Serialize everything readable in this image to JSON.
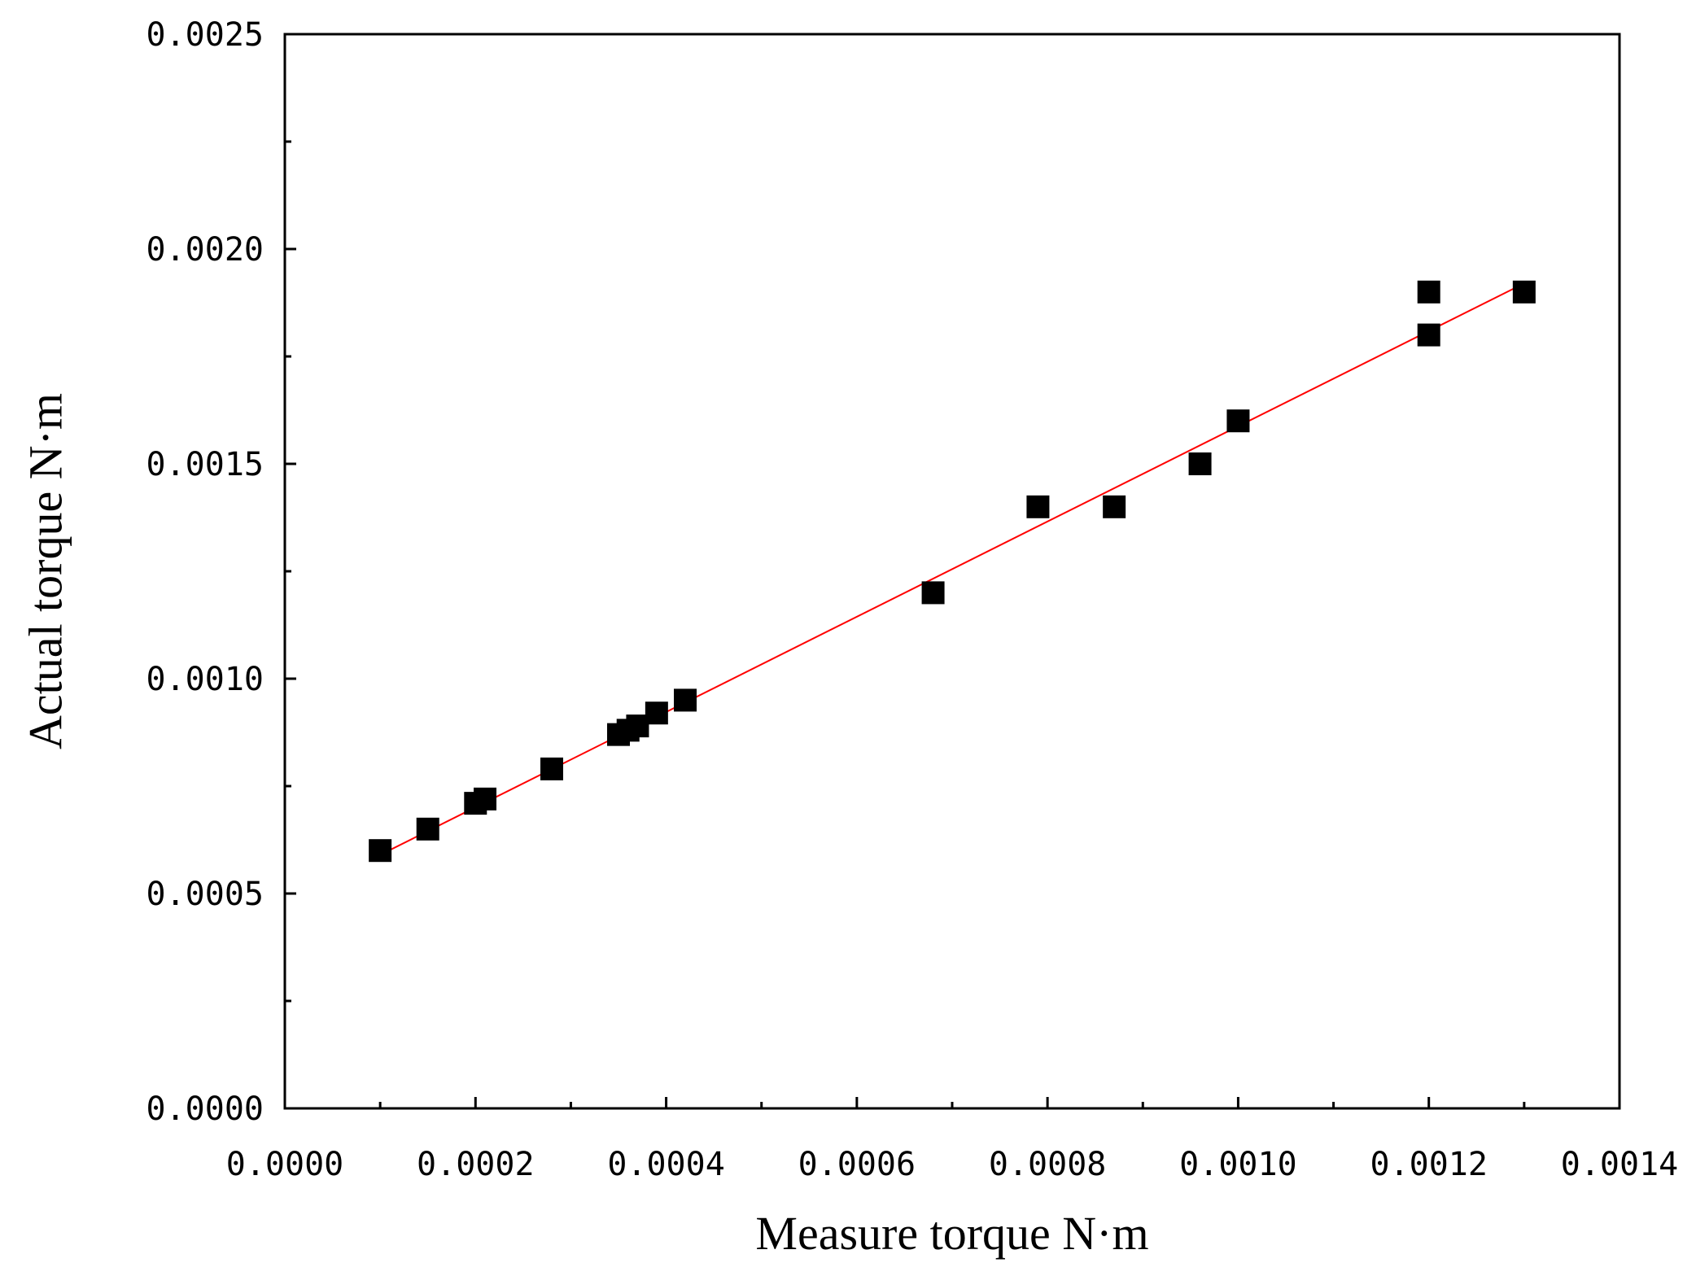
{
  "chart_data": {
    "type": "scatter",
    "title": "",
    "xlabel": "Measure torque  N·m",
    "ylabel": "Actual torque  N·m",
    "xlim": [
      0,
      0.0014
    ],
    "ylim": [
      0,
      0.0025
    ],
    "x_ticks": [
      0.0,
      0.0002,
      0.0004,
      0.0006,
      0.0008,
      0.001,
      0.0012,
      0.0014
    ],
    "x_tick_labels": [
      "0.0000",
      "0.0002",
      "0.0004",
      "0.0006",
      "0.0008",
      "0.0010",
      "0.0012",
      "0.0014"
    ],
    "y_ticks": [
      0.0,
      0.0005,
      0.001,
      0.0015,
      0.002,
      0.0025
    ],
    "y_tick_labels": [
      "0.0000",
      "0.0005",
      "0.0010",
      "0.0015",
      "0.0020",
      "0.0025"
    ],
    "grid": false,
    "legend": "none",
    "marker_color": "#000000",
    "line_color": "#ff0000",
    "points": [
      {
        "x": 0.0001,
        "y": 0.0006
      },
      {
        "x": 0.00015,
        "y": 0.00065
      },
      {
        "x": 0.0002,
        "y": 0.00071
      },
      {
        "x": 0.00021,
        "y": 0.00072
      },
      {
        "x": 0.00028,
        "y": 0.00079
      },
      {
        "x": 0.00035,
        "y": 0.00087
      },
      {
        "x": 0.00036,
        "y": 0.00088
      },
      {
        "x": 0.00037,
        "y": 0.00089
      },
      {
        "x": 0.00039,
        "y": 0.00092
      },
      {
        "x": 0.00042,
        "y": 0.00095
      },
      {
        "x": 0.00068,
        "y": 0.0012
      },
      {
        "x": 0.00079,
        "y": 0.0014
      },
      {
        "x": 0.00087,
        "y": 0.0014
      },
      {
        "x": 0.00096,
        "y": 0.0015
      },
      {
        "x": 0.001,
        "y": 0.0016
      },
      {
        "x": 0.0012,
        "y": 0.0018
      },
      {
        "x": 0.0012,
        "y": 0.0019
      },
      {
        "x": 0.0013,
        "y": 0.0019
      }
    ],
    "fit_line": {
      "x1": 0.0001,
      "y1": 0.00059,
      "x2": 0.0013,
      "y2": 0.00192
    }
  }
}
